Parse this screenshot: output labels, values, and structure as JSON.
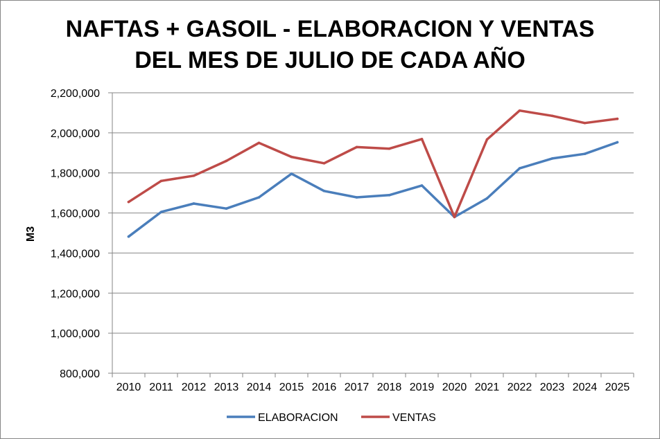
{
  "chart_data": {
    "type": "line",
    "title": [
      "NAFTAS + GASOIL - ELABORACION Y VENTAS",
      "DEL MES DE JULIO DE CADA AÑO"
    ],
    "ylabel": "M3",
    "xlabel": "",
    "ylim": [
      800000,
      2200000
    ],
    "yticks": [
      800000,
      1000000,
      1200000,
      1400000,
      1600000,
      1800000,
      2000000,
      2200000
    ],
    "ytick_labels": [
      "800,000",
      "1,000,000",
      "1,200,000",
      "1,400,000",
      "1,600,000",
      "1,800,000",
      "2,000,000",
      "2,200,000"
    ],
    "categories": [
      "2010",
      "2011",
      "2012",
      "2013",
      "2014",
      "2015",
      "2016",
      "2017",
      "2018",
      "2019",
      "2020",
      "2021",
      "2022",
      "2023",
      "2024",
      "2025"
    ],
    "grid": true,
    "legend_position": "bottom",
    "series": [
      {
        "name": "ELABORACION",
        "color": "#4a7ebb",
        "values": [
          1482000,
          1605000,
          1647000,
          1622000,
          1678000,
          1796000,
          1710000,
          1678000,
          1689000,
          1737000,
          1580000,
          1673000,
          1823000,
          1872000,
          1895000,
          1953000
        ]
      },
      {
        "name": "VENTAS",
        "color": "#be4b48",
        "values": [
          1655000,
          1760000,
          1786000,
          1860000,
          1950000,
          1880000,
          1848000,
          1929000,
          1921000,
          1969000,
          1580000,
          1967000,
          2111000,
          2085000,
          2049000,
          2070000
        ]
      }
    ]
  }
}
